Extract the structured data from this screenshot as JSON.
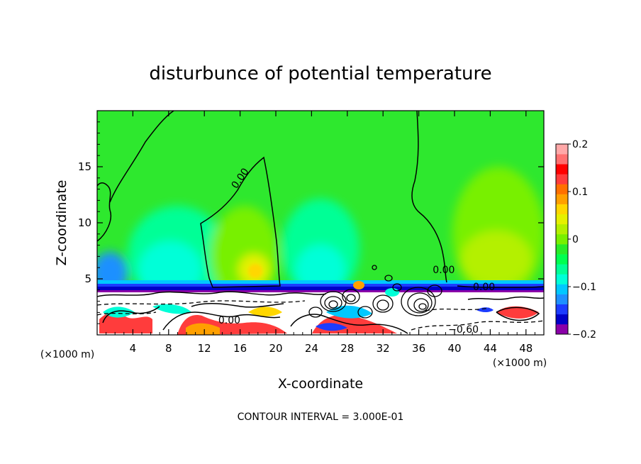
{
  "chart_data": {
    "type": "heatmap",
    "title": "disturbunce of potential temperature",
    "xlabel": "X-coordinate",
    "ylabel": "Z-coordinate",
    "x_unit": "(×1000 m)",
    "y_unit": "(×1000 m)",
    "xlim": [
      0,
      50
    ],
    "ylim": [
      0,
      20
    ],
    "x_ticks": [
      4,
      8,
      12,
      16,
      20,
      24,
      28,
      32,
      36,
      40,
      44,
      48
    ],
    "y_ticks": [
      5,
      10,
      15
    ],
    "footnote": "CONTOUR INTERVAL = 3.000E-01",
    "colorbar": {
      "min": -0.2,
      "max": 0.2,
      "tick_values": [
        0.2,
        0.1,
        0,
        -0.1,
        -0.2
      ],
      "tick_labels": [
        "0.2",
        "0.1",
        "0",
        "−0.1",
        "−0.2"
      ],
      "colors": [
        "#8a00a8",
        "#0000c8",
        "#1c3cff",
        "#1e90ff",
        "#00c8ff",
        "#00ffd8",
        "#00ff96",
        "#00ff50",
        "#28ec28",
        "#78f000",
        "#b4f000",
        "#e6f000",
        "#ffd700",
        "#ffa000",
        "#ff7000",
        "#ff3c3c",
        "#ff0000",
        "#ff7070",
        "#ffa8a8"
      ]
    },
    "contour_labels": [
      {
        "text": "0.00",
        "x": 16.3,
        "z": 13.8
      },
      {
        "text": "0.00",
        "x": 38.8,
        "z": 5.5
      },
      {
        "text": "0.00",
        "x": 43.3,
        "z": 4.0
      },
      {
        "text": "0.00",
        "x": 14.8,
        "z": 1.0
      },
      {
        "text": "−0.60",
        "x": 41.0,
        "z": 0.2
      }
    ]
  }
}
